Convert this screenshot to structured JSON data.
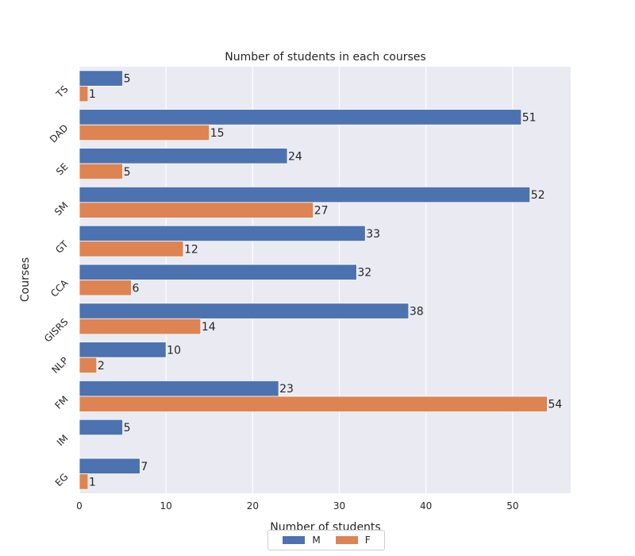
{
  "chart_data": {
    "type": "bar",
    "orientation": "horizontal",
    "title": "Number of students in each courses",
    "xlabel": "Number of students",
    "ylabel": "Courses",
    "categories": [
      "TS",
      "DAD",
      "SE",
      "SM",
      "GT",
      "CCA",
      "GISRS",
      "NLP",
      "FM",
      "IM",
      "EG"
    ],
    "series": [
      {
        "name": "M",
        "color": "#4c72b0",
        "values": [
          5,
          51,
          24,
          52,
          33,
          32,
          38,
          10,
          23,
          5,
          7
        ]
      },
      {
        "name": "F",
        "color": "#dd8452",
        "values": [
          1,
          15,
          5,
          27,
          12,
          6,
          14,
          2,
          54,
          null,
          1
        ]
      }
    ],
    "xlim": [
      0,
      56.7
    ],
    "xticks": [
      0,
      10,
      20,
      30,
      40,
      50
    ],
    "grid": true,
    "legend_position": "bottom-center",
    "background": "#eaeaf2"
  }
}
